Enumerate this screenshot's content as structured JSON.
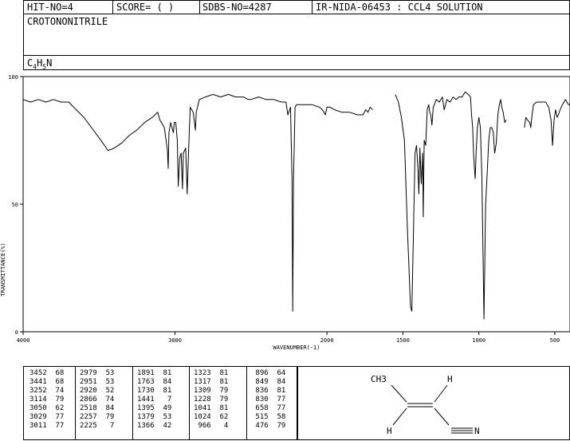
{
  "header": {
    "hit_no": "HIT-NO=4",
    "score": "SCORE=  (   )",
    "sdbs_no": "SDBS-NO=4287",
    "ir_id": "IR-NIDA-06453 : CCL4 SOLUTION",
    "compound_name": "CROTONONITRILE",
    "formula_parts": [
      "C",
      "4",
      "H",
      "5",
      "N"
    ]
  },
  "chart_data": {
    "type": "line",
    "title": "",
    "xlabel": "WAVENUMBER(-1)",
    "ylabel": "TRANSMITTANCE(%)",
    "xlim": [
      4000,
      400
    ],
    "ylim": [
      0,
      100
    ],
    "x_ticks": [
      4000,
      3000,
      2000,
      1500,
      1000,
      500
    ],
    "x_tick_labels": [
      "4000",
      "3000",
      "2000",
      "1500",
      "1000",
      "500"
    ],
    "y_ticks": [
      0,
      50,
      100
    ],
    "y_tick_labels": [
      "0",
      "50",
      "100"
    ],
    "grid": false,
    "series": [
      {
        "name": "",
        "segments": [
          [
            [
              4000,
              91
            ],
            [
              3950,
              90
            ],
            [
              3900,
              91
            ],
            [
              3850,
              90
            ],
            [
              3800,
              91
            ],
            [
              3750,
              90
            ],
            [
              3700,
              90
            ],
            [
              3650,
              87
            ],
            [
              3600,
              84
            ],
            [
              3550,
              80
            ],
            [
              3500,
              76
            ],
            [
              3452,
              72
            ],
            [
              3441,
              71
            ],
            [
              3400,
              72
            ],
            [
              3350,
              74
            ],
            [
              3300,
              77
            ],
            [
              3252,
              79
            ],
            [
              3200,
              82
            ],
            [
              3150,
              84
            ],
            [
              3114,
              86
            ],
            [
              3100,
              83
            ],
            [
              3070,
              80
            ],
            [
              3050,
              71
            ],
            [
              3045,
              64
            ],
            [
              3040,
              78
            ],
            [
              3029,
              82
            ],
            [
              3020,
              80
            ],
            [
              3011,
              78
            ],
            [
              3005,
              82
            ],
            [
              2995,
              82
            ],
            [
              2985,
              75
            ],
            [
              2979,
              57
            ],
            [
              2970,
              68
            ],
            [
              2960,
              70
            ],
            [
              2951,
              56
            ],
            [
              2945,
              70
            ],
            [
              2930,
              72
            ],
            [
              2920,
              54
            ],
            [
              2910,
              72
            ],
            [
              2900,
              88
            ],
            [
              2880,
              86
            ],
            [
              2866,
              79
            ],
            [
              2860,
              86
            ],
            [
              2840,
              91
            ],
            [
              2800,
              92
            ],
            [
              2750,
              93
            ],
            [
              2700,
              92
            ],
            [
              2650,
              93
            ],
            [
              2600,
              92
            ],
            [
              2550,
              92
            ],
            [
              2518,
              91
            ],
            [
              2500,
              91
            ],
            [
              2450,
              92
            ],
            [
              2400,
              91
            ],
            [
              2350,
              91
            ],
            [
              2300,
              90
            ],
            [
              2270,
              90
            ],
            [
              2257,
              85
            ],
            [
              2240,
              88
            ],
            [
              2230,
              60
            ],
            [
              2225,
              8
            ],
            [
              2220,
              60
            ],
            [
              2210,
              88
            ],
            [
              2200,
              89
            ],
            [
              2150,
              89
            ],
            [
              2100,
              89
            ],
            [
              2050,
              88
            ],
            [
              2030,
              87
            ],
            [
              2010,
              85
            ],
            [
              2000,
              88
            ],
            [
              1980,
              88
            ],
            [
              1950,
              87
            ],
            [
              1900,
              86
            ],
            [
              1891,
              86
            ],
            [
              1850,
              86
            ],
            [
              1800,
              85
            ],
            [
              1763,
              85
            ],
            [
              1745,
              87
            ],
            [
              1730,
              86
            ],
            [
              1715,
              88
            ],
            [
              1700,
              87
            ]
          ],
          [
            [
              1550,
              93
            ],
            [
              1530,
              90
            ],
            [
              1510,
              84
            ],
            [
              1490,
              75
            ],
            [
              1470,
              40
            ],
            [
              1450,
              10
            ],
            [
              1441,
              8
            ],
            [
              1430,
              40
            ],
            [
              1420,
              70
            ],
            [
              1410,
              73
            ],
            [
              1400,
              63
            ],
            [
              1395,
              54
            ],
            [
              1388,
              72
            ],
            [
              1379,
              58
            ],
            [
              1370,
              70
            ],
            [
              1366,
              45
            ],
            [
              1360,
              75
            ],
            [
              1350,
              73
            ],
            [
              1340,
              87
            ],
            [
              1330,
              89
            ],
            [
              1323,
              86
            ],
            [
              1317,
              85
            ],
            [
              1309,
              81
            ],
            [
              1300,
              88
            ],
            [
              1280,
              91
            ],
            [
              1260,
              90
            ],
            [
              1240,
              92
            ],
            [
              1228,
              87
            ],
            [
              1210,
              91
            ],
            [
              1190,
              90
            ],
            [
              1170,
              92
            ],
            [
              1150,
              91
            ],
            [
              1130,
              92
            ],
            [
              1110,
              92
            ],
            [
              1090,
              94
            ],
            [
              1070,
              93
            ],
            [
              1055,
              92
            ],
            [
              1048,
              85
            ],
            [
              1041,
              80
            ],
            [
              1035,
              70
            ],
            [
              1030,
              65
            ],
            [
              1024,
              60
            ],
            [
              1018,
              70
            ],
            [
              1010,
              80
            ],
            [
              1000,
              84
            ],
            [
              990,
              80
            ],
            [
              980,
              60
            ],
            [
              966,
              5
            ],
            [
              955,
              50
            ],
            [
              945,
              62
            ],
            [
              935,
              75
            ],
            [
              925,
              80
            ],
            [
              915,
              80
            ],
            [
              905,
              78
            ],
            [
              896,
              70
            ],
            [
              885,
              74
            ],
            [
              875,
              85
            ],
            [
              865,
              89
            ],
            [
              856,
              91
            ],
            [
              849,
              88
            ],
            [
              840,
              86
            ],
            [
              830,
              82
            ],
            [
              820,
              83
            ]
          ],
          [
            [
              700,
              80
            ],
            [
              690,
              84
            ],
            [
              680,
              83
            ],
            [
              665,
              82
            ],
            [
              658,
              80
            ],
            [
              650,
              85
            ],
            [
              640,
              89
            ],
            [
              620,
              90
            ],
            [
              600,
              90
            ],
            [
              580,
              90
            ],
            [
              560,
              90
            ],
            [
              540,
              88
            ],
            [
              525,
              83
            ],
            [
              515,
              73
            ],
            [
              505,
              83
            ],
            [
              495,
              87
            ],
            [
              485,
              84
            ],
            [
              476,
              85
            ],
            [
              465,
              87
            ],
            [
              450,
              89
            ],
            [
              430,
              91
            ],
            [
              420,
              90
            ],
            [
              410,
              89
            ],
            [
              400,
              89
            ]
          ]
        ]
      }
    ]
  },
  "peak_table": {
    "columns": [
      [
        [
          "3452",
          "68"
        ],
        [
          "3441",
          "68"
        ],
        [
          "3252",
          "74"
        ],
        [
          "3114",
          "79"
        ],
        [
          "3050",
          "62"
        ],
        [
          "3029",
          "77"
        ],
        [
          "3011",
          "77"
        ]
      ],
      [
        [
          "2979",
          "53"
        ],
        [
          "2951",
          "53"
        ],
        [
          "2920",
          "52"
        ],
        [
          "2866",
          "74"
        ],
        [
          "2518",
          "84"
        ],
        [
          "2257",
          "79"
        ],
        [
          "2225",
          "7"
        ]
      ],
      [
        [
          "1891",
          "81"
        ],
        [
          "1763",
          "84"
        ],
        [
          "1730",
          "81"
        ],
        [
          "1441",
          "7"
        ],
        [
          "1395",
          "49"
        ],
        [
          "1379",
          "53"
        ],
        [
          "1366",
          "42"
        ]
      ],
      [
        [
          "1323",
          "81"
        ],
        [
          "1317",
          "81"
        ],
        [
          "1309",
          "79"
        ],
        [
          "1228",
          "79"
        ],
        [
          "1041",
          "81"
        ],
        [
          "1024",
          "62"
        ],
        [
          "966",
          "4"
        ]
      ],
      [
        [
          "896",
          "64"
        ],
        [
          "849",
          "84"
        ],
        [
          "836",
          "81"
        ],
        [
          "830",
          "77"
        ],
        [
          "658",
          "77"
        ],
        [
          "515",
          "58"
        ],
        [
          "476",
          "79"
        ]
      ]
    ]
  },
  "structure": {
    "ch3": "CH3",
    "h_top": "H",
    "h_bottom": "H",
    "nitrogen": "N"
  }
}
